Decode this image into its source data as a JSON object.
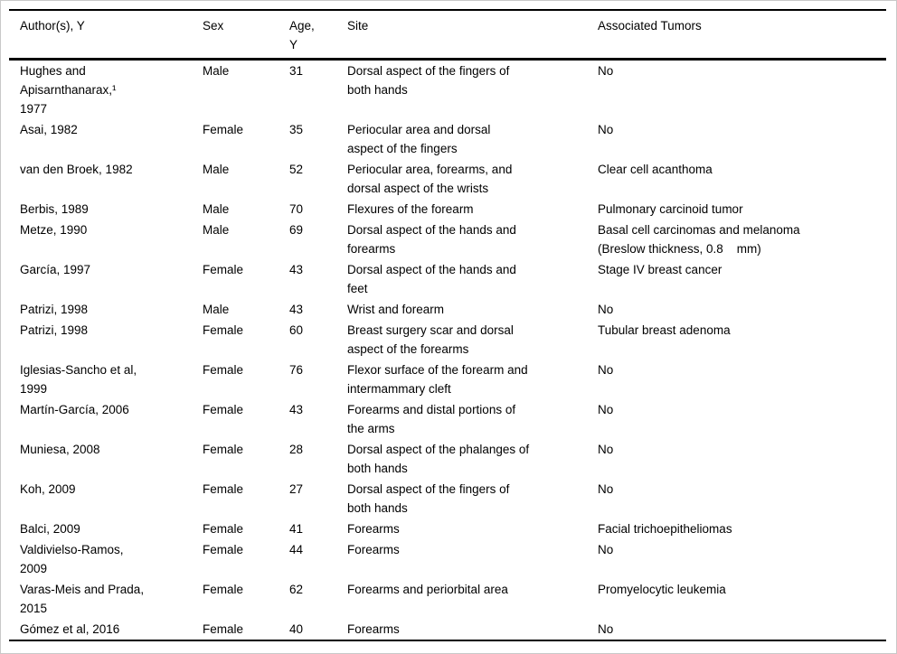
{
  "table": {
    "columns": [
      {
        "key": "author_y",
        "label": "Author(s), Y"
      },
      {
        "key": "sex",
        "label": "Sex"
      },
      {
        "key": "age_y",
        "label": "Age,\nY"
      },
      {
        "key": "site",
        "label": "Site"
      },
      {
        "key": "associated_tumors",
        "label": "Associated Tumors"
      }
    ],
    "rows": [
      [
        "Hughes and\nApisarnthanarax,¹\n1977",
        "Male",
        "31",
        "Dorsal aspect of the fingers of\nboth hands",
        "No"
      ],
      [
        "Asai, 1982",
        "Female",
        "35",
        "Periocular area and dorsal\naspect of the fingers",
        "No"
      ],
      [
        "van den Broek, 1982",
        "Male",
        "52",
        "Periocular area, forearms, and\ndorsal aspect of the wrists",
        "Clear cell acanthoma"
      ],
      [
        "Berbis, 1989",
        "Male",
        "70",
        "Flexures of the forearm",
        "Pulmonary carcinoid tumor"
      ],
      [
        "Metze, 1990",
        "Male",
        "69",
        "Dorsal aspect of the hands and\nforearms",
        "Basal cell carcinomas and melanoma\n(Breslow thickness, 0.8    mm)"
      ],
      [
        "García, 1997",
        "Female",
        "43",
        "Dorsal aspect of the hands and\nfeet",
        "Stage IV breast cancer"
      ],
      [
        "Patrizi, 1998",
        "Male",
        "43",
        "Wrist and forearm",
        "No"
      ],
      [
        "Patrizi, 1998",
        "Female",
        "60",
        "Breast surgery scar and dorsal\naspect of the forearms",
        "Tubular breast adenoma"
      ],
      [
        "Iglesias-Sancho et al,\n1999",
        "Female",
        "76",
        "Flexor surface of the forearm and\nintermammary cleft",
        "No"
      ],
      [
        "Martín-García, 2006",
        "Female",
        "43",
        "Forearms and distal portions of\nthe arms",
        "No"
      ],
      [
        "Muniesa, 2008",
        "Female",
        "28",
        "Dorsal aspect of the phalanges of\nboth hands",
        "No"
      ],
      [
        "Koh, 2009",
        "Female",
        "27",
        "Dorsal aspect of the fingers of\nboth hands",
        "No"
      ],
      [
        "Balci, 2009",
        "Female",
        "41",
        "Forearms",
        "Facial trichoepitheliomas"
      ],
      [
        "Valdivielso-Ramos,\n2009",
        "Female",
        "44",
        "Forearms",
        "No"
      ],
      [
        "Varas-Meis and Prada,\n2015",
        "Female",
        "62",
        "Forearms and periorbital area",
        "Promyelocytic leukemia"
      ],
      [
        "Gómez et al, 2016",
        "Female",
        "40",
        "Forearms",
        "No"
      ]
    ]
  }
}
